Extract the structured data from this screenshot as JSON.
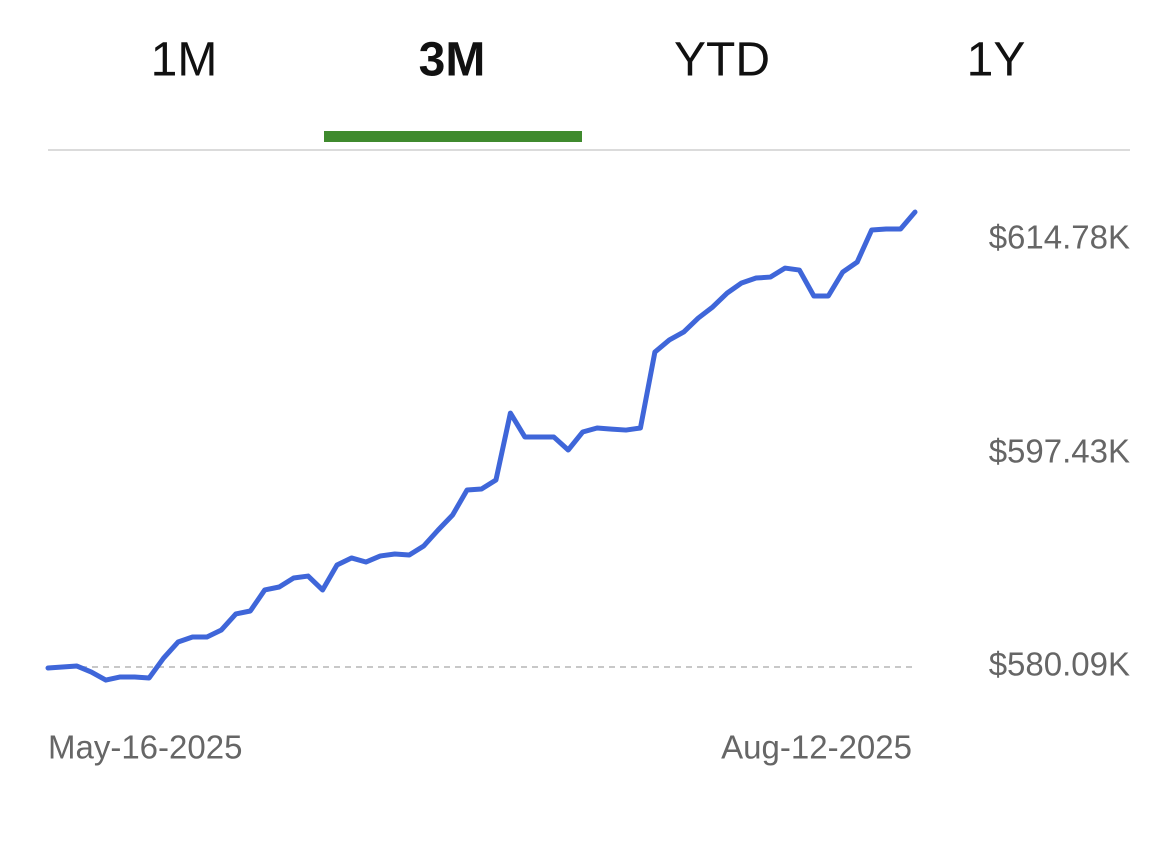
{
  "tabs": [
    {
      "label": "1M",
      "selected": false
    },
    {
      "label": "3M",
      "selected": true
    },
    {
      "label": "YTD",
      "selected": false
    },
    {
      "label": "1Y",
      "selected": false
    }
  ],
  "chart_data": {
    "type": "line",
    "color": "#3f66d9",
    "categories": [
      "May-16-2025",
      null,
      null,
      null,
      null,
      null,
      null,
      null,
      null,
      null,
      null,
      null,
      null,
      null,
      null,
      null,
      null,
      null,
      null,
      null,
      null,
      null,
      null,
      null,
      null,
      null,
      null,
      null,
      null,
      null,
      null,
      null,
      null,
      null,
      null,
      null,
      null,
      null,
      null,
      null,
      null,
      null,
      null,
      null,
      null,
      null,
      null,
      null,
      null,
      null,
      null,
      null,
      null,
      null,
      null,
      null,
      null,
      null,
      null,
      null,
      "Aug-12-2025"
    ],
    "values": [
      580.01,
      580.09,
      580.17,
      579.68,
      579.03,
      579.28,
      579.28,
      579.2,
      580.82,
      582.12,
      582.53,
      582.53,
      583.1,
      584.4,
      584.64,
      586.35,
      586.59,
      587.32,
      587.48,
      586.35,
      588.38,
      588.95,
      588.62,
      589.11,
      589.27,
      589.19,
      589.92,
      591.22,
      592.44,
      594.47,
      594.55,
      595.28,
      600.72,
      598.78,
      598.78,
      598.78,
      597.72,
      599.18,
      599.51,
      599.42,
      599.34,
      599.51,
      605.68,
      606.66,
      607.31,
      608.44,
      609.34,
      610.47,
      611.29,
      611.69,
      611.77,
      612.5,
      612.34,
      610.23,
      610.23,
      612.18,
      612.99,
      615.59,
      615.67,
      615.67,
      617.05
    ],
    "ylim": [
      577.41,
      618.03
    ],
    "yticks": [
      {
        "value": 580.09,
        "label": "$580.09K"
      },
      {
        "value": 597.43,
        "label": "$597.43K"
      },
      {
        "value": 614.78,
        "label": "$614.78K"
      }
    ]
  }
}
